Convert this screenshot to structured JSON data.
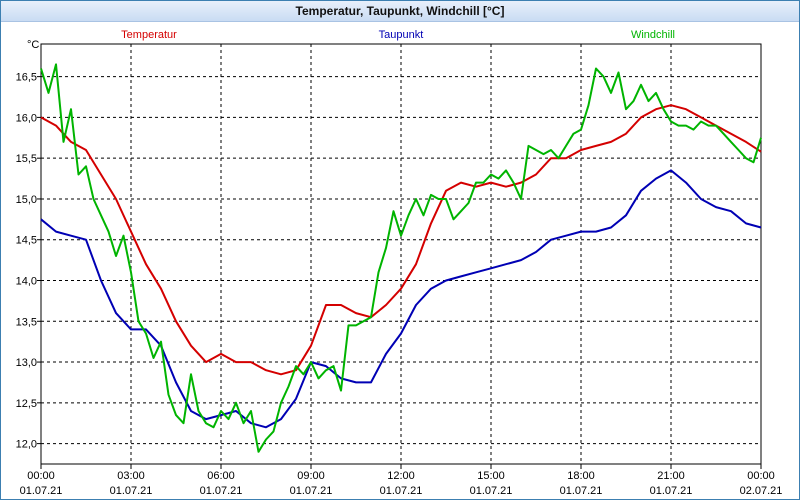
{
  "window": {
    "title": "Temperatur, Taupunkt, Windchill [°C]"
  },
  "chart_data": {
    "type": "line",
    "title": "Temperatur, Taupunkt, Windchill [°C]",
    "unit": "°C",
    "ylim": [
      11.75,
      16.9
    ],
    "yticks": [
      12.0,
      12.5,
      13.0,
      13.5,
      14.0,
      14.5,
      15.0,
      15.5,
      16.0,
      16.5
    ],
    "ytick_labels": [
      "12,0",
      "12,5",
      "13,0",
      "13,5",
      "14,0",
      "14,5",
      "15,0",
      "15,5",
      "16,0",
      "16,5"
    ],
    "xlim": [
      0,
      24
    ],
    "xticks": [
      0,
      3,
      6,
      9,
      12,
      15,
      18,
      21,
      24
    ],
    "xtick_time_labels": [
      "00:00",
      "03:00",
      "06:00",
      "09:00",
      "12:00",
      "15:00",
      "18:00",
      "21:00",
      "00:00"
    ],
    "xtick_date_labels": [
      "01.07.21",
      "01.07.21",
      "01.07.21",
      "01.07.21",
      "01.07.21",
      "01.07.21",
      "01.07.21",
      "01.07.21",
      "02.07.21"
    ],
    "grid": true,
    "series": [
      {
        "name": "Temperatur",
        "color": "#d40000",
        "x": [
          0,
          0.5,
          1,
          1.5,
          2,
          2.5,
          3,
          3.5,
          4,
          4.5,
          5,
          5.5,
          6,
          6.5,
          7,
          7.5,
          8,
          8.5,
          9,
          9.5,
          10,
          10.5,
          11,
          11.5,
          12,
          12.5,
          13,
          13.5,
          14,
          14.5,
          15,
          15.5,
          16,
          16.5,
          17,
          17.5,
          18,
          18.5,
          19,
          19.5,
          20,
          20.5,
          21,
          21.5,
          22,
          22.5,
          23,
          23.5,
          24
        ],
        "values": [
          16.0,
          15.9,
          15.7,
          15.6,
          15.3,
          15.0,
          14.6,
          14.2,
          13.9,
          13.5,
          13.2,
          13.0,
          13.1,
          13.0,
          13.0,
          12.9,
          12.85,
          12.9,
          13.2,
          13.7,
          13.7,
          13.6,
          13.55,
          13.7,
          13.9,
          14.2,
          14.7,
          15.1,
          15.2,
          15.15,
          15.2,
          15.15,
          15.2,
          15.3,
          15.5,
          15.5,
          15.6,
          15.65,
          15.7,
          15.8,
          16.0,
          16.1,
          16.15,
          16.1,
          16.0,
          15.9,
          15.8,
          15.7,
          15.58
        ]
      },
      {
        "name": "Taupunkt",
        "color": "#0000b4",
        "x": [
          0,
          0.5,
          1,
          1.5,
          2,
          2.5,
          3,
          3.5,
          4,
          4.5,
          5,
          5.5,
          6,
          6.5,
          7,
          7.5,
          8,
          8.5,
          9,
          9.5,
          10,
          10.5,
          11,
          11.5,
          12,
          12.5,
          13,
          13.5,
          14,
          14.5,
          15,
          15.5,
          16,
          16.5,
          17,
          17.5,
          18,
          18.5,
          19,
          19.5,
          20,
          20.5,
          21,
          21.5,
          22,
          22.5,
          23,
          23.5,
          24
        ],
        "values": [
          14.75,
          14.6,
          14.55,
          14.5,
          14.0,
          13.6,
          13.4,
          13.4,
          13.2,
          12.75,
          12.4,
          12.3,
          12.35,
          12.4,
          12.25,
          12.2,
          12.3,
          12.55,
          13.0,
          12.95,
          12.8,
          12.75,
          12.75,
          13.1,
          13.35,
          13.7,
          13.9,
          14.0,
          14.05,
          14.1,
          14.15,
          14.2,
          14.25,
          14.35,
          14.5,
          14.55,
          14.6,
          14.6,
          14.65,
          14.8,
          15.1,
          15.25,
          15.35,
          15.2,
          15.0,
          14.9,
          14.85,
          14.7,
          14.65
        ]
      },
      {
        "name": "Windchill",
        "color": "#00b400",
        "x": [
          0,
          0.25,
          0.5,
          0.75,
          1,
          1.25,
          1.5,
          1.75,
          2,
          2.25,
          2.5,
          2.75,
          3,
          3.25,
          3.5,
          3.75,
          4,
          4.25,
          4.5,
          4.75,
          5,
          5.25,
          5.5,
          5.75,
          6,
          6.25,
          6.5,
          6.75,
          7,
          7.25,
          7.5,
          7.75,
          8,
          8.25,
          8.5,
          8.75,
          9,
          9.25,
          9.5,
          9.75,
          10,
          10.25,
          10.5,
          10.75,
          11,
          11.25,
          11.5,
          11.75,
          12,
          12.25,
          12.5,
          12.75,
          13,
          13.25,
          13.5,
          13.75,
          14,
          14.25,
          14.5,
          14.75,
          15,
          15.25,
          15.5,
          15.75,
          16,
          16.25,
          16.5,
          16.75,
          17,
          17.25,
          17.5,
          17.75,
          18,
          18.25,
          18.5,
          18.75,
          19,
          19.25,
          19.5,
          19.75,
          20,
          20.25,
          20.5,
          20.75,
          21,
          21.25,
          21.5,
          21.75,
          22,
          22.25,
          22.5,
          22.75,
          23,
          23.25,
          23.5,
          23.75,
          24
        ],
        "values": [
          16.6,
          16.3,
          16.65,
          15.7,
          16.1,
          15.3,
          15.4,
          15.0,
          14.8,
          14.6,
          14.3,
          14.55,
          14.1,
          13.5,
          13.35,
          13.05,
          13.25,
          12.6,
          12.35,
          12.25,
          12.85,
          12.4,
          12.25,
          12.2,
          12.4,
          12.3,
          12.5,
          12.25,
          12.4,
          11.9,
          12.05,
          12.15,
          12.5,
          12.7,
          12.95,
          12.85,
          13.0,
          12.8,
          12.9,
          12.95,
          12.65,
          13.45,
          13.45,
          13.5,
          13.55,
          14.1,
          14.4,
          14.85,
          14.55,
          14.8,
          15.0,
          14.8,
          15.05,
          15.0,
          15.0,
          14.75,
          14.85,
          14.95,
          15.2,
          15.2,
          15.3,
          15.25,
          15.35,
          15.2,
          15.0,
          15.65,
          15.6,
          15.55,
          15.6,
          15.5,
          15.65,
          15.8,
          15.85,
          16.15,
          16.6,
          16.5,
          16.3,
          16.55,
          16.1,
          16.2,
          16.4,
          16.2,
          16.3,
          16.1,
          15.95,
          15.9,
          15.9,
          15.85,
          15.95,
          15.9,
          15.9,
          15.8,
          15.7,
          15.6,
          15.5,
          15.45,
          15.75
        ]
      }
    ]
  }
}
